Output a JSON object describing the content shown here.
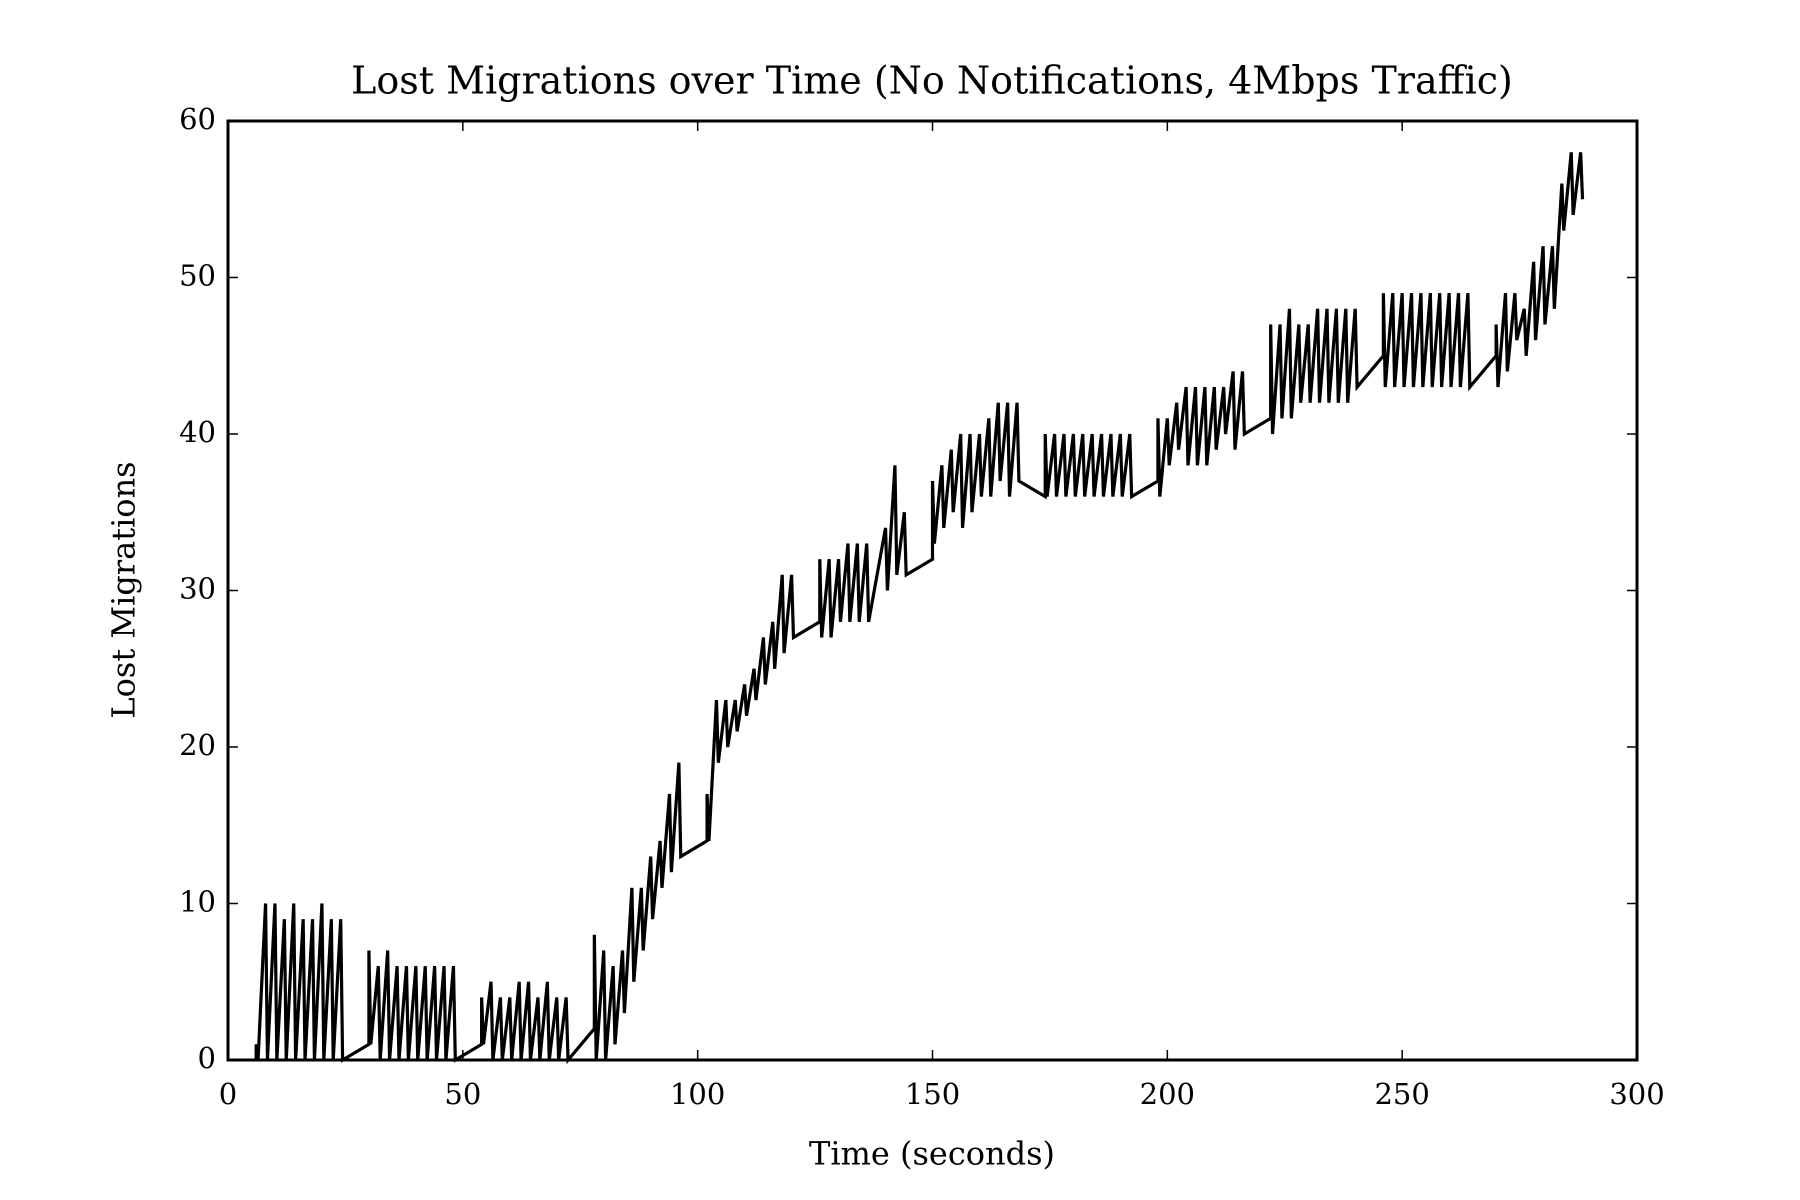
{
  "chart_data": {
    "type": "line",
    "title": "Lost Migrations over Time (No Notifications, 4Mbps Traffic)",
    "x_label": "Time (seconds)",
    "y_label": "Lost Migrations",
    "color": "#000000",
    "xlim": [
      0,
      300
    ],
    "xticks": [
      0,
      50,
      100,
      150,
      200,
      250,
      300
    ],
    "ylim": [
      0,
      60
    ],
    "yticks": [
      0,
      10,
      20,
      30,
      40,
      50,
      60
    ],
    "x": [
      6,
      6,
      6.4,
      8,
      8.4,
      10,
      10.4,
      12,
      12.4,
      14,
      14.4,
      16,
      16.4,
      18,
      18.4,
      20,
      20.4,
      22,
      22.4,
      24,
      24.4,
      30,
      30,
      30.4,
      32,
      32.4,
      34,
      34.4,
      36,
      36.4,
      38,
      38.4,
      40,
      40.4,
      42,
      42.4,
      44,
      44.4,
      46,
      46.4,
      48,
      48.4,
      54,
      54,
      54.4,
      56,
      56.4,
      58,
      58.4,
      60,
      60.4,
      62,
      62.4,
      64,
      64.4,
      66,
      66.4,
      68,
      68.4,
      70,
      70.4,
      72,
      72.4,
      78,
      78,
      78.4,
      80,
      80.4,
      82,
      82.4,
      84,
      84.4,
      86,
      86.4,
      88,
      88.4,
      90,
      90.4,
      92,
      92.4,
      94,
      94.4,
      96,
      96.4,
      102,
      102,
      102.4,
      104,
      104.4,
      106,
      106.4,
      108,
      108.4,
      110,
      110.4,
      112,
      112.4,
      114,
      114.4,
      116,
      116.4,
      118,
      118.4,
      120,
      120.4,
      126,
      126,
      126.4,
      128,
      128.4,
      130,
      130.4,
      132,
      132.4,
      134,
      134.4,
      136,
      136.4,
      140,
      140.4,
      142,
      142.4,
      144,
      144.4,
      150,
      150,
      150.4,
      152,
      152.4,
      154,
      154.4,
      156,
      156.4,
      158,
      158.4,
      160,
      160.4,
      162,
      162.4,
      164,
      164.4,
      166,
      166.4,
      168,
      168.4,
      174,
      174,
      174.4,
      176,
      176.4,
      178,
      178.4,
      180,
      180.4,
      182,
      182.4,
      184,
      184.4,
      186,
      186.4,
      188,
      188.4,
      190,
      190.4,
      192,
      192.4,
      198,
      198,
      198.4,
      200,
      200.4,
      202,
      202.4,
      204,
      204.4,
      206,
      206.4,
      208,
      208.4,
      210,
      210.4,
      212,
      212.4,
      214,
      214.4,
      216,
      216.4,
      222,
      222,
      222.4,
      224,
      224.4,
      226,
      226.4,
      228,
      228.4,
      230,
      230.4,
      232,
      232.4,
      234,
      234.4,
      236,
      236.4,
      238,
      238.4,
      240,
      240.4,
      246,
      246,
      246.4,
      248,
      248.4,
      250,
      250.4,
      252,
      252.4,
      254,
      254.4,
      256,
      256.4,
      258,
      258.4,
      260,
      260.4,
      262,
      262.4,
      264,
      264.4,
      270,
      270,
      270.4,
      272,
      272.4,
      274,
      274.4,
      276,
      276.4,
      278,
      278.4,
      280,
      280.4,
      282,
      282.4,
      284,
      284.4,
      286,
      286.4,
      288,
      288.4
    ],
    "values": [
      0,
      1,
      0,
      10,
      0,
      10,
      0,
      9,
      0,
      10,
      0,
      9,
      0,
      9,
      0,
      10,
      0,
      9,
      0,
      9,
      0,
      1,
      7,
      1,
      6,
      0,
      7,
      0,
      6,
      0,
      6,
      0,
      6,
      0,
      6,
      0,
      6,
      0,
      6,
      0,
      6,
      0,
      1,
      4,
      1,
      5,
      0,
      4,
      0,
      4,
      0,
      5,
      0,
      5,
      0,
      4,
      0,
      5,
      0,
      4,
      0,
      4,
      0,
      2,
      8,
      0,
      7,
      0,
      6,
      1,
      7,
      3,
      11,
      5,
      11,
      7,
      13,
      9,
      14,
      11,
      17,
      12,
      19,
      13,
      14,
      17,
      14,
      23,
      19,
      23,
      20,
      23,
      21,
      24,
      22,
      25,
      23,
      27,
      24,
      28,
      25,
      31,
      26,
      31,
      27,
      28,
      32,
      27,
      32,
      27,
      32,
      28,
      33,
      28,
      33,
      28,
      33,
      28,
      34,
      30,
      38,
      31,
      35,
      31,
      32,
      37,
      33,
      38,
      34,
      39,
      35,
      40,
      34,
      40,
      35,
      40,
      36,
      41,
      36,
      42,
      37,
      42,
      36,
      42,
      37,
      36,
      40,
      36,
      40,
      36,
      40,
      36,
      40,
      36,
      40,
      36,
      40,
      36,
      40,
      36,
      40,
      36,
      40,
      36,
      40,
      36,
      37,
      41,
      36,
      41,
      38,
      42,
      39,
      43,
      38,
      43,
      38,
      43,
      38,
      43,
      39,
      43,
      40,
      44,
      39,
      44,
      40,
      41,
      47,
      40,
      47,
      41,
      48,
      41,
      47,
      42,
      47,
      42,
      48,
      42,
      48,
      42,
      48,
      42,
      48,
      42,
      48,
      43,
      45,
      49,
      43,
      49,
      43,
      49,
      43,
      49,
      43,
      49,
      43,
      49,
      43,
      49,
      43,
      49,
      43,
      49,
      43,
      49,
      43,
      45,
      47,
      43,
      49,
      44,
      49,
      46,
      48,
      45,
      51,
      46,
      52,
      47,
      52,
      48,
      56,
      53,
      58,
      54,
      58,
      55
    ]
  }
}
